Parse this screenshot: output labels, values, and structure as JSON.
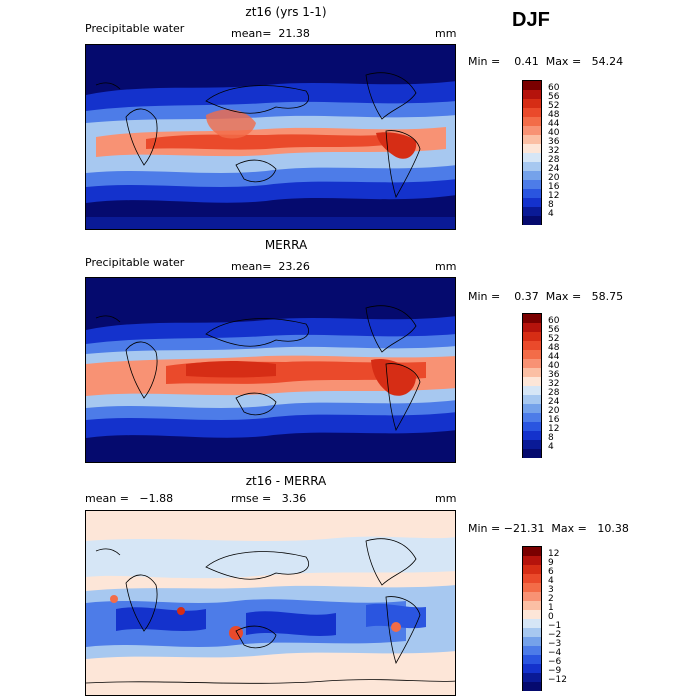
{
  "season": "DJF",
  "panels": [
    {
      "title": "zt16 (yrs 1-1)",
      "left_label": "Precipitable water",
      "stat_label": "mean=",
      "stat_value": "21.38",
      "unit": "mm",
      "range_text": "Min =    0.41  Max =   54.24",
      "cbar_labels": [
        "60",
        "56",
        "52",
        "48",
        "44",
        "40",
        "36",
        "32",
        "28",
        "24",
        "20",
        "16",
        "12",
        "8",
        "4"
      ]
    },
    {
      "title": "MERRA",
      "left_label": "Precipitable water",
      "stat_label": "mean=",
      "stat_value": "23.26",
      "unit": "mm",
      "range_text": "Min =    0.37  Max =   58.75",
      "cbar_labels": [
        "60",
        "56",
        "52",
        "48",
        "44",
        "40",
        "36",
        "32",
        "28",
        "24",
        "20",
        "16",
        "12",
        "8",
        "4"
      ]
    },
    {
      "title": "zt16 - MERRA",
      "left_label": "mean =   −1.88",
      "stat_label": "rmse =",
      "stat_value": "3.36",
      "unit": "mm",
      "range_text": "Min = −21.31  Max =   10.38",
      "cbar_labels": [
        "12",
        "9",
        "6",
        "4",
        "3",
        "2",
        "1",
        "0",
        "−1",
        "−2",
        "−3",
        "−4",
        "−6",
        "−9",
        "−12"
      ]
    }
  ],
  "colors": {
    "abs_scale": [
      "#7a0000",
      "#b5130c",
      "#d62d15",
      "#ea4a2b",
      "#f36c48",
      "#f89274",
      "#fbbfa4",
      "#fde6d8",
      "#d6e6f6",
      "#a7c8f0",
      "#75a2ea",
      "#4d7ce8",
      "#2a55e0",
      "#1432cc",
      "#0a1a96",
      "#050a6e"
    ],
    "diff_scale": [
      "#7a0000",
      "#b5130c",
      "#d62d15",
      "#ea4a2b",
      "#f36c48",
      "#f89274",
      "#fbbfa4",
      "#fde6d8",
      "#d6e6f6",
      "#a7c8f0",
      "#75a2ea",
      "#4d7ce8",
      "#2a55e0",
      "#1432cc",
      "#0a1a96",
      "#050a6e"
    ]
  }
}
